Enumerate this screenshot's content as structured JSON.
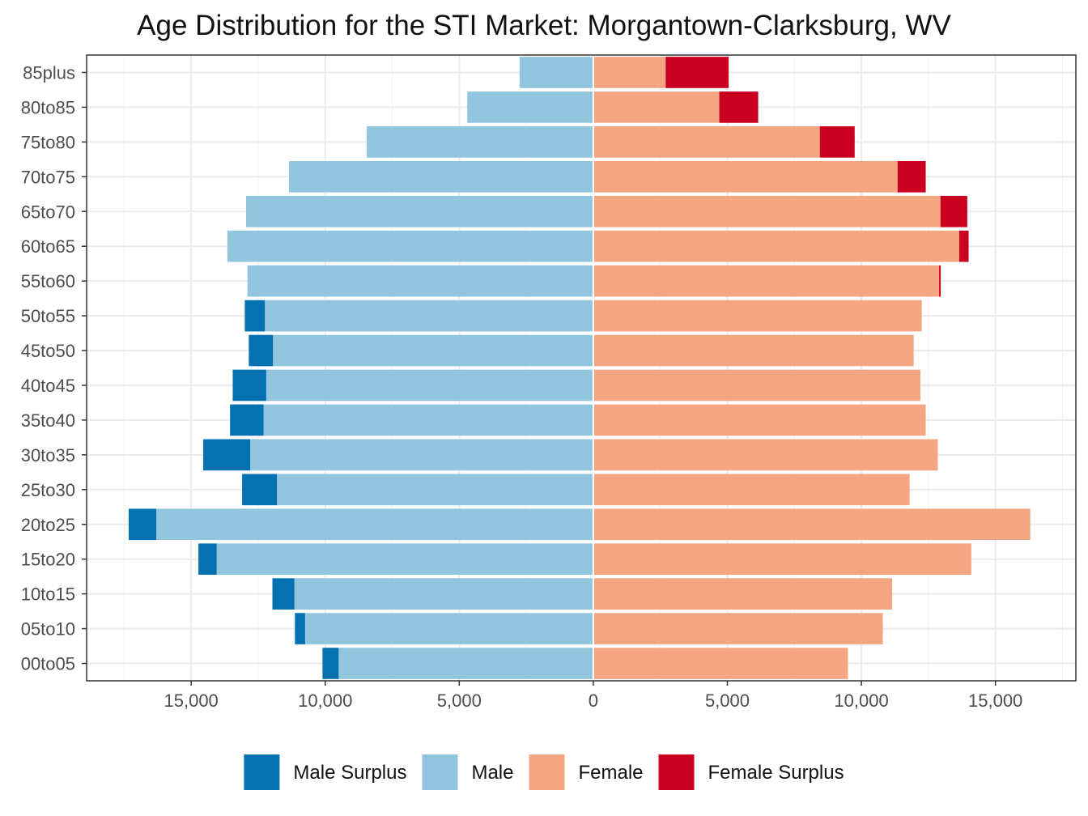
{
  "chart_data": {
    "type": "bar",
    "orientation": "horizontal",
    "title": "Age Distribution for the STI Market: Morgantown-Clarksburg, WV",
    "xlim": [
      -18900,
      18000
    ],
    "x_ticks": [
      -15000,
      -10000,
      -5000,
      0,
      5000,
      10000,
      15000
    ],
    "x_tick_labels": [
      "15,000",
      "10,000",
      "5,000",
      "0",
      "5,000",
      "10,000",
      "15,000"
    ],
    "categories": [
      "00to05",
      "05to10",
      "10to15",
      "15to20",
      "20to25",
      "25to30",
      "30to35",
      "35to40",
      "40to45",
      "45to50",
      "50to55",
      "55to60",
      "60to65",
      "65to70",
      "70to75",
      "75to80",
      "80to85",
      "85plus"
    ],
    "series": [
      {
        "name": "Male Surplus",
        "color": "#0571b0",
        "side": "left",
        "values": [
          600,
          380,
          820,
          680,
          1030,
          1300,
          1750,
          1250,
          1250,
          900,
          750,
          0,
          0,
          0,
          0,
          0,
          0,
          0
        ]
      },
      {
        "name": "Male",
        "color": "#92c5de",
        "side": "left",
        "values": [
          9500,
          10750,
          11150,
          14050,
          16300,
          11800,
          12800,
          12300,
          12200,
          11950,
          12250,
          12900,
          13650,
          12950,
          11350,
          8450,
          4700,
          2750
        ]
      },
      {
        "name": "Female",
        "color": "#f4a582",
        "side": "right",
        "values": [
          9500,
          10800,
          11150,
          14100,
          16300,
          11800,
          12850,
          12400,
          12200,
          11950,
          12250,
          12900,
          13650,
          12950,
          11350,
          8450,
          4700,
          2700
        ]
      },
      {
        "name": "Female Surplus",
        "color": "#ca0020",
        "side": "right",
        "values": [
          0,
          0,
          0,
          0,
          0,
          0,
          0,
          0,
          0,
          0,
          0,
          60,
          350,
          1000,
          1050,
          1300,
          1450,
          2350
        ]
      }
    ],
    "grid": true,
    "legend_position": "bottom"
  }
}
